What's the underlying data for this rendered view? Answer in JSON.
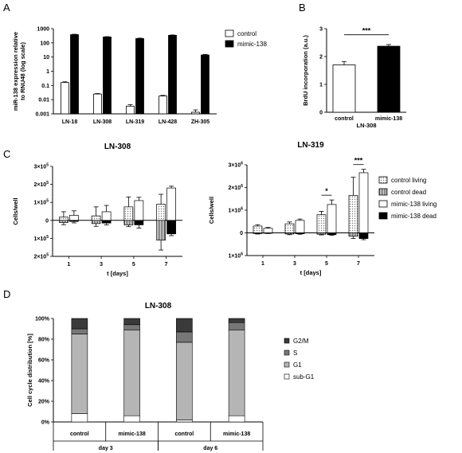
{
  "panels": {
    "a": "A",
    "b": "B",
    "c": "C",
    "d": "D"
  },
  "colors": {
    "control": "#ffffff",
    "mimic": "#000000",
    "g2m": "#3a3a3a",
    "s": "#777777",
    "g1": "#b5b5b5",
    "subg1": "#ffffff"
  },
  "chart_data": [
    {
      "id": "A",
      "type": "bar",
      "scale": "log",
      "ylabel": "miR-138 expression relative to RNU48 (log scale)",
      "ylabel_lines": [
        "miR-138 expression relative",
        "to RNU48 (log scale)"
      ],
      "ylim": [
        0.001,
        1000
      ],
      "yticks": [
        0.001,
        0.01,
        0.1,
        1,
        10,
        100,
        1000
      ],
      "ytick_labels": [
        "0.001",
        "0.01",
        "0.1",
        "1",
        "10",
        "100",
        "1000"
      ],
      "categories": [
        "LN-18",
        "LN-308",
        "LN-319",
        "LN-428",
        "ZH-305"
      ],
      "series": [
        {
          "name": "control",
          "values": [
            0.16,
            0.025,
            0.0035,
            0.018,
            0.0013
          ],
          "err": [
            0.02,
            0.002,
            0.001,
            0.002,
            0.0006
          ]
        },
        {
          "name": "mimic-138",
          "values": [
            380,
            260,
            200,
            340,
            14
          ],
          "err": [
            25,
            15,
            15,
            20,
            1.5
          ]
        }
      ]
    },
    {
      "id": "B",
      "type": "bar",
      "ylabel": "BrdU incorporation (a.u.)",
      "xlabel": "LN-308",
      "ylim": [
        0,
        3
      ],
      "yticks": [
        0,
        1,
        2,
        3
      ],
      "ytick_labels": [
        "0",
        "1",
        "2",
        "3"
      ],
      "categories": [
        "control",
        "mimic-138"
      ],
      "values": [
        1.7,
        2.37
      ],
      "err": [
        0.12,
        0.06
      ],
      "significance": "***"
    },
    {
      "id": "C1",
      "type": "bar",
      "title": "LN-308",
      "xlabel": "t [days]",
      "ylabel": "Cells/well",
      "ylim": [
        -200000,
        300000
      ],
      "yticks": [
        -200000,
        -100000,
        0,
        100000,
        200000,
        300000
      ],
      "ytick_labels": [
        {
          "m": "2",
          "sup": "5"
        },
        {
          "m": "1",
          "sup": "5"
        },
        {
          "m": "0",
          "sup": ""
        },
        {
          "m": "1",
          "sup": "5"
        },
        {
          "m": "2",
          "sup": "5"
        },
        {
          "m": "3",
          "sup": "5"
        }
      ],
      "ytick_base": "×10",
      "categories": [
        "1",
        "3",
        "5",
        "7"
      ],
      "series": [
        {
          "name": "control living",
          "values": [
            18000,
            25000,
            75000,
            90000
          ],
          "err": [
            30000,
            50000,
            55000,
            55000
          ]
        },
        {
          "name": "control dead",
          "values": [
            -12000,
            -18000,
            -25000,
            -110000
          ],
          "err": [
            12000,
            15000,
            10000,
            55000
          ]
        },
        {
          "name": "mimic-138 living",
          "values": [
            28000,
            48000,
            110000,
            180000
          ],
          "err": [
            25000,
            35000,
            18000,
            10000
          ]
        },
        {
          "name": "mimic-138 dead",
          "values": [
            -6000,
            -15000,
            -25000,
            -75000
          ],
          "err": [
            8000,
            10000,
            18000,
            10000
          ]
        }
      ]
    },
    {
      "id": "C2",
      "type": "bar",
      "title": "LN-319",
      "xlabel": "t [days]",
      "ylabel": "Cells/well",
      "ylim": [
        -1000000,
        3000000
      ],
      "yticks": [
        -1000000,
        0,
        1000000,
        2000000,
        3000000
      ],
      "ytick_labels": [
        {
          "m": "1",
          "sup": "6"
        },
        {
          "m": "0",
          "sup": ""
        },
        {
          "m": "1",
          "sup": "6"
        },
        {
          "m": "2",
          "sup": "6"
        },
        {
          "m": "3",
          "sup": "6"
        }
      ],
      "ytick_base": "×10",
      "categories": [
        "1",
        "3",
        "5",
        "7"
      ],
      "series": [
        {
          "name": "control living",
          "values": [
            300000,
            400000,
            800000,
            1650000
          ],
          "err": [
            60000,
            80000,
            150000,
            800000
          ]
        },
        {
          "name": "control dead",
          "values": [
            -30000,
            -50000,
            -60000,
            -150000
          ],
          "err": [
            20000,
            30000,
            30000,
            100000
          ]
        },
        {
          "name": "mimic-138 living",
          "values": [
            200000,
            550000,
            1250000,
            2650000
          ],
          "err": [
            40000,
            60000,
            200000,
            150000
          ]
        },
        {
          "name": "mimic-138 dead",
          "values": [
            -20000,
            -40000,
            -80000,
            -250000
          ],
          "err": [
            10000,
            20000,
            30000,
            50000
          ]
        }
      ],
      "significance": [
        {
          "category": "5",
          "label": "*"
        },
        {
          "category": "7",
          "label": "***"
        }
      ]
    },
    {
      "id": "D",
      "type": "bar",
      "stacked": true,
      "title": "LN-308",
      "ylabel": "Cell cycle distribution [%]",
      "ylim": [
        0,
        100
      ],
      "yticks": [
        0,
        20,
        40,
        60,
        80,
        100
      ],
      "ytick_labels": [
        "0%",
        "20%",
        "40%",
        "60%",
        "80%",
        "100%"
      ],
      "categories": [
        "control",
        "mimic-138",
        "control",
        "mimic-138"
      ],
      "groups": [
        {
          "label": "day 3",
          "span": [
            0,
            1
          ]
        },
        {
          "label": "day 6",
          "span": [
            2,
            3
          ]
        }
      ],
      "series": [
        {
          "name": "sub-G1",
          "values": [
            8,
            6,
            2,
            6
          ]
        },
        {
          "name": "G1",
          "values": [
            77,
            83,
            75,
            83
          ]
        },
        {
          "name": "S",
          "values": [
            5,
            5,
            10,
            7
          ]
        },
        {
          "name": "G2/M",
          "values": [
            10,
            6,
            13,
            4
          ]
        }
      ],
      "legend_order": [
        "G2/M",
        "S",
        "G1",
        "sub-G1"
      ]
    }
  ]
}
